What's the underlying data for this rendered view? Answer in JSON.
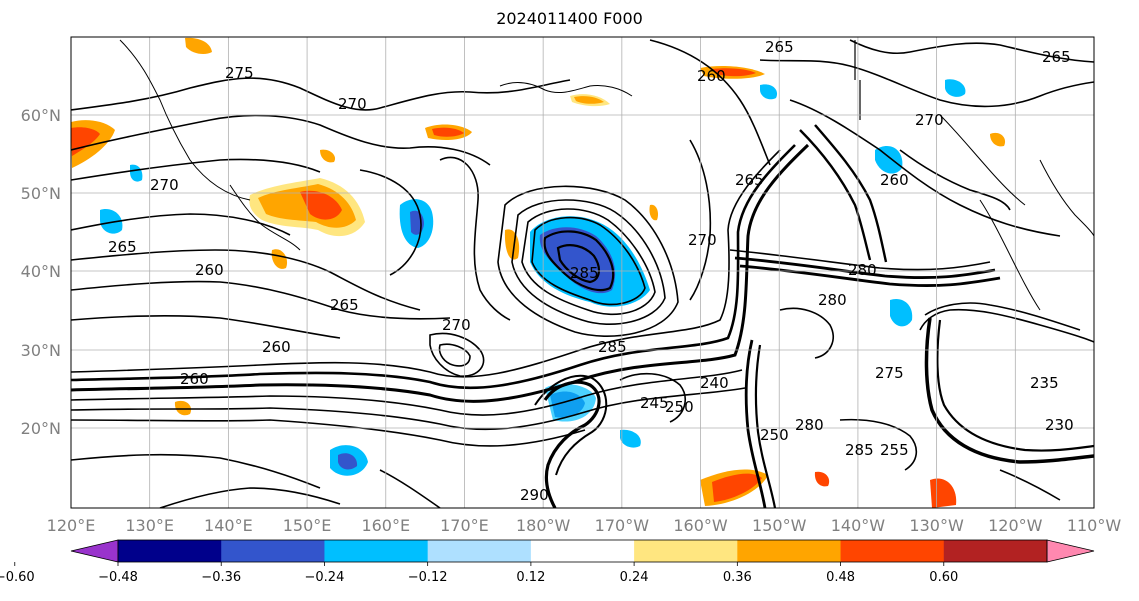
{
  "title": "2024011400 F000",
  "map": {
    "lon_labels": [
      "120°E",
      "130°E",
      "140°E",
      "150°E",
      "160°E",
      "170°E",
      "180°W",
      "170°W",
      "160°W",
      "150°W",
      "140°W",
      "130°W",
      "120°W",
      "110°W"
    ],
    "lat_labels": [
      "60°N",
      "50°N",
      "40°N",
      "30°N",
      "20°N"
    ],
    "contour_labels": [
      "275",
      "270",
      "260",
      "265",
      "260",
      "265",
      "270",
      "260",
      "260",
      "285",
      "265",
      "270",
      "280",
      "285",
      "280",
      "275",
      "270",
      "265",
      "230",
      "235",
      "250",
      "260",
      "265",
      "270",
      "280",
      "285",
      "290",
      "240",
      "245",
      "250",
      "255"
    ]
  },
  "colorbar": {
    "tick_labels": [
      "−0.60",
      "−0.48",
      "−0.36",
      "−0.24",
      "−0.12",
      "0.12",
      "0.24",
      "0.36",
      "0.48",
      "0.60"
    ],
    "colors": [
      "#9933cc",
      "#00008b",
      "#3355cc",
      "#00bfff",
      "#aee0ff",
      "#ffffff",
      "#ffe680",
      "#ffa500",
      "#ff4500",
      "#b22222",
      "#ff88b0"
    ]
  }
}
